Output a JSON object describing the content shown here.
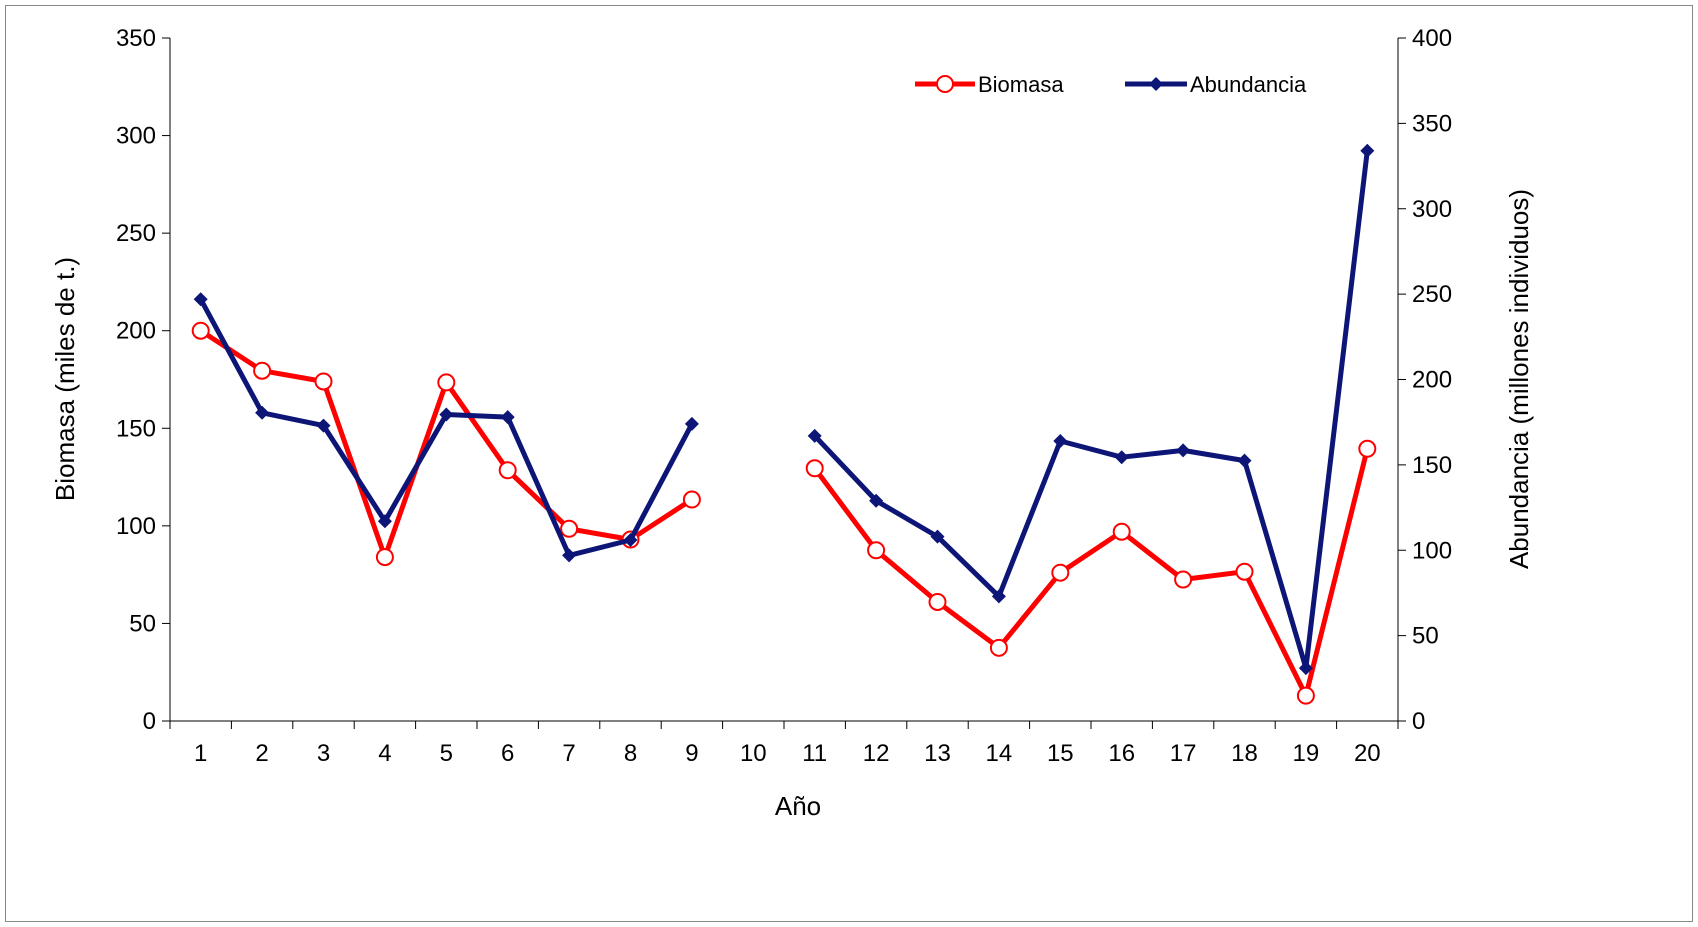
{
  "chart_data": {
    "type": "line",
    "title": "",
    "xlabel": "Año",
    "ylabel": "Biomasa (miles de t.)",
    "y2label": "Abundancia (millones individuos)",
    "categories": [
      "1",
      "2",
      "3",
      "4",
      "5",
      "6",
      "7",
      "8",
      "9",
      "10",
      "11",
      "12",
      "13",
      "14",
      "15",
      "16",
      "17",
      "18",
      "19",
      "20"
    ],
    "ylim": [
      0,
      350
    ],
    "y_ticks": [
      "0",
      "50",
      "100",
      "150",
      "200",
      "250",
      "300",
      "350"
    ],
    "y2lim": [
      0,
      400
    ],
    "y2_ticks": [
      "0",
      "50",
      "100",
      "150",
      "200",
      "250",
      "300",
      "350",
      "400"
    ],
    "grid": false,
    "legend_position": "top-right",
    "series": [
      {
        "name": "Biomasa",
        "axis": "left",
        "color": "#FF0000",
        "marker": "open-circle",
        "values": [
          200,
          179.5,
          174,
          84,
          173.5,
          128.5,
          98.5,
          93,
          113.5,
          null,
          129.5,
          87.5,
          61,
          37.5,
          76,
          97,
          72.5,
          76.5,
          13,
          139.5
        ]
      },
      {
        "name": "Abundancia",
        "axis": "right",
        "color": "#0D1577",
        "marker": "filled-diamond",
        "values": [
          247,
          180.5,
          173,
          117,
          179.5,
          178,
          97,
          106,
          174,
          null,
          167,
          129,
          108,
          73,
          164,
          154.5,
          158.5,
          152.5,
          31,
          334
        ]
      }
    ]
  }
}
